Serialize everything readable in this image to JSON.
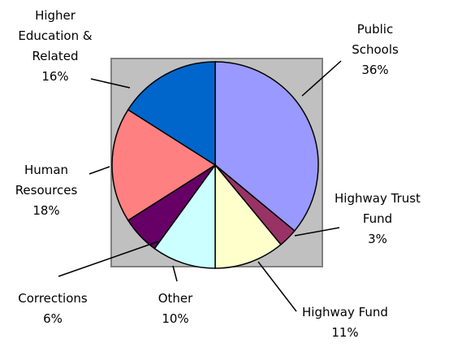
{
  "chart_data": {
    "type": "pie",
    "categories": [
      "Public Schools",
      "Highway Trust Fund",
      "Highway Fund",
      "Other",
      "Corrections",
      "Human Resources",
      "Higher Education & Related"
    ],
    "values": [
      36,
      3,
      11,
      10,
      6,
      18,
      16
    ],
    "value_labels": [
      "36%",
      "3%",
      "11%",
      "10%",
      "6%",
      "18%",
      "16%"
    ],
    "colors": [
      "#9999ff",
      "#993366",
      "#ffffcc",
      "#ccffff",
      "#660066",
      "#ff8080",
      "#0066cc"
    ]
  }
}
